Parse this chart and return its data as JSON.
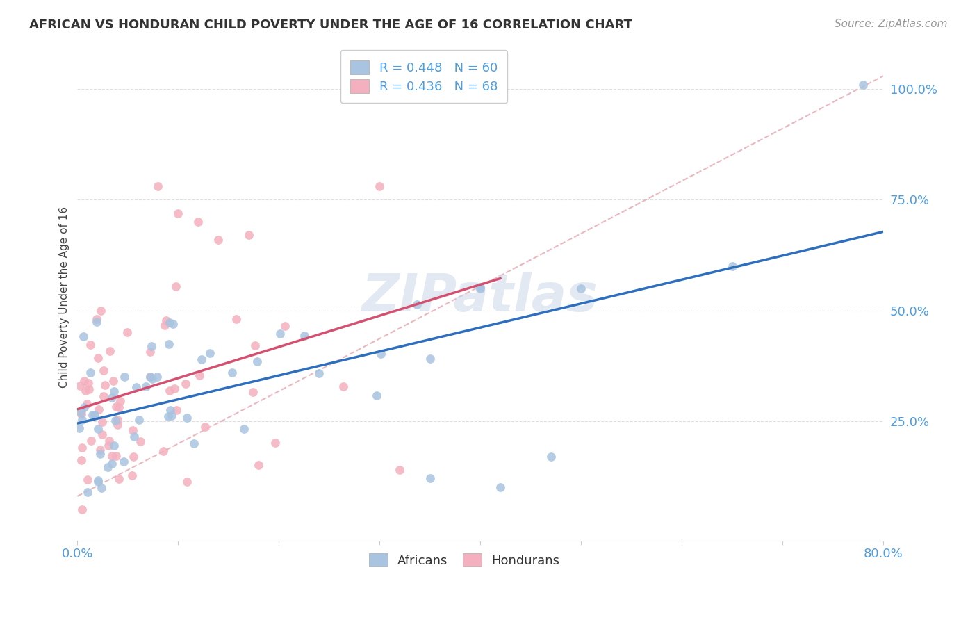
{
  "title": "AFRICAN VS HONDURAN CHILD POVERTY UNDER THE AGE OF 16 CORRELATION CHART",
  "source": "Source: ZipAtlas.com",
  "ylabel": "Child Poverty Under the Age of 16",
  "yticks": [
    "25.0%",
    "50.0%",
    "75.0%",
    "100.0%"
  ],
  "ytick_vals": [
    0.25,
    0.5,
    0.75,
    1.0
  ],
  "xlim": [
    0.0,
    0.8
  ],
  "ylim": [
    -0.02,
    1.08
  ],
  "african_R": 0.448,
  "african_N": 60,
  "honduran_R": 0.436,
  "honduran_N": 68,
  "african_color": "#a8c4e0",
  "honduran_color": "#f4b0be",
  "african_line_color": "#2e6fbd",
  "honduran_line_color": "#d45070",
  "dash_line_color": "#e8b0b8",
  "watermark_color": "#d0dce8",
  "background_color": "#ffffff",
  "grid_color": "#d8d8d8",
  "tick_color": "#4d9de0",
  "title_color": "#333333",
  "source_color": "#999999",
  "ylabel_color": "#444444"
}
